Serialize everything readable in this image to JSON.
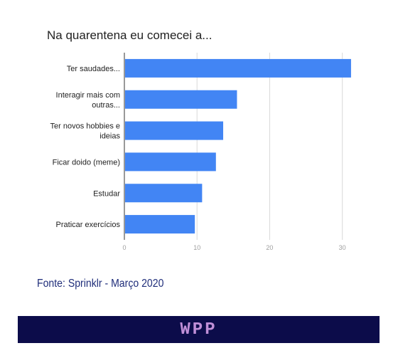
{
  "chart_data": {
    "type": "bar",
    "orientation": "horizontal",
    "title": "Na quarentena eu comecei a...",
    "categories": [
      [
        "Ter saudades..."
      ],
      [
        "Interagir mais com",
        "outras..."
      ],
      [
        "Ter novos hobbies e",
        "ideias"
      ],
      [
        "Ficar doido (meme)"
      ],
      [
        "Estudar"
      ],
      [
        "Praticar exercícios"
      ]
    ],
    "values": [
      31.2,
      15.5,
      13.6,
      12.6,
      10.7,
      9.7
    ],
    "xlim": [
      0,
      31.5
    ],
    "xticks": [
      0,
      10,
      20,
      30
    ],
    "grid": true,
    "bar_color": "#4285f4"
  },
  "source_text": "Fonte: Sprinklr - Março 2020",
  "footer": {
    "logo_text": "WPP",
    "background": "#0c0c4a",
    "logo_color": "#c08fd8"
  }
}
